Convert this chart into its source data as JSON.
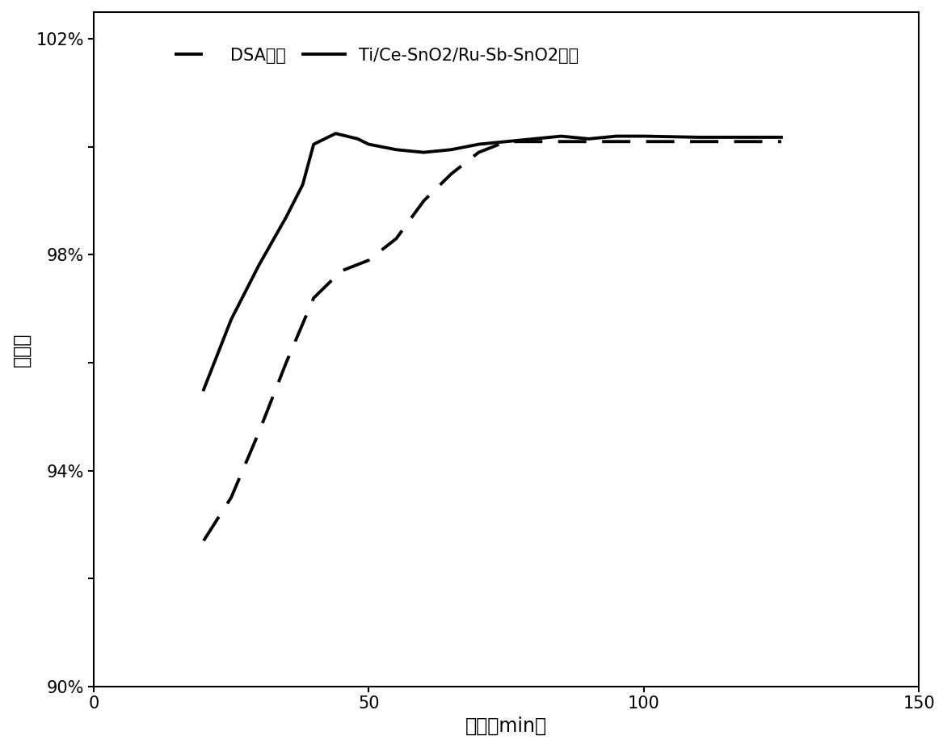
{
  "xlabel": "时间（min）",
  "ylabel": "杀菌率",
  "xlim": [
    0,
    150
  ],
  "ylim": [
    0.9,
    1.025
  ],
  "xticks": [
    0,
    50,
    100,
    150
  ],
  "yticks": [
    0.9,
    0.92,
    0.94,
    0.96,
    0.98,
    1.0,
    1.02
  ],
  "ytick_labels": [
    "90%",
    "",
    "94%",
    "",
    "98%",
    "",
    "102%"
  ],
  "background_color": "#ffffff",
  "line_color": "#000000",
  "solid_line": {
    "x": [
      20,
      25,
      30,
      35,
      38,
      40,
      42,
      44,
      46,
      48,
      50,
      55,
      60,
      65,
      70,
      75,
      80,
      85,
      90,
      95,
      100,
      110,
      120,
      125
    ],
    "y": [
      0.955,
      0.968,
      0.978,
      0.987,
      0.993,
      1.0005,
      1.0015,
      1.0025,
      1.002,
      1.0015,
      1.0005,
      0.9995,
      0.999,
      0.9995,
      1.0005,
      1.001,
      1.0015,
      1.002,
      1.0015,
      1.002,
      1.002,
      1.0018,
      1.0018,
      1.0018
    ],
    "label": "Ti/Ce-SnO2/Ru-Sb-SnO2电极",
    "linestyle": "solid",
    "linewidth": 2.8
  },
  "dashed_line": {
    "x": [
      20,
      25,
      30,
      35,
      40,
      45,
      50,
      55,
      60,
      65,
      70,
      75,
      80,
      85,
      90,
      95,
      100,
      110,
      120,
      125
    ],
    "y": [
      0.927,
      0.935,
      0.947,
      0.96,
      0.972,
      0.977,
      0.979,
      0.983,
      0.99,
      0.995,
      0.999,
      1.001,
      1.001,
      1.001,
      1.001,
      1.001,
      1.001,
      1.001,
      1.001,
      1.001
    ],
    "label": "DSA电极",
    "linestyle": "dashed",
    "linewidth": 2.8
  },
  "legend_fontsize": 15,
  "axis_fontsize": 17,
  "tick_fontsize": 15
}
